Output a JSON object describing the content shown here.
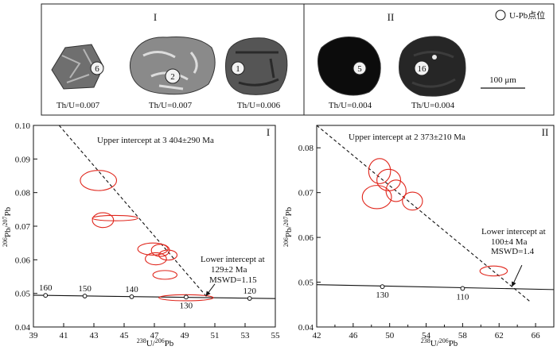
{
  "figure": {
    "image_panel": {
      "groups": [
        {
          "numeral": "I"
        },
        {
          "numeral": "II"
        }
      ],
      "grains": [
        {
          "id": "6",
          "th_u": "Th/U=0.007",
          "group": "I",
          "tone": "#6f6f6f"
        },
        {
          "id": "2",
          "th_u": "Th/U=0.007",
          "group": "I",
          "tone": "#8a8a8a"
        },
        {
          "id": "1",
          "th_u": "Th/U=0.006",
          "group": "I",
          "tone": "#555555"
        },
        {
          "id": "5",
          "th_u": "Th/U=0.004",
          "group": "II",
          "tone": "#0c0c0c"
        },
        {
          "id": "16",
          "th_u": "Th/U=0.004",
          "group": "II",
          "tone": "#262626"
        }
      ],
      "legend_label": "U-Pb点位",
      "scale_bar_label": "100 μm"
    }
  },
  "chart_data": [
    {
      "type": "scatter",
      "panel": "I",
      "xlabel": "238U/206Pb",
      "ylabel": "206Pb/207Pb",
      "xlim": [
        39,
        55
      ],
      "ylim": [
        0.04,
        0.1
      ],
      "xticks": [
        "39",
        "41",
        "43",
        "45",
        "47",
        "49",
        "51",
        "53",
        "55"
      ],
      "yticks": [
        "0.04",
        "0.05",
        "0.06",
        "0.07",
        "0.08",
        "0.09",
        "0.10"
      ],
      "ellipses": [
        {
          "x": 43.3,
          "y": 0.0836,
          "rx": 1.2,
          "ry": 0.003
        },
        {
          "x": 43.6,
          "y": 0.0718,
          "rx": 0.7,
          "ry": 0.0022
        },
        {
          "x": 44.4,
          "y": 0.0724,
          "rx": 1.5,
          "ry": 0.0008
        },
        {
          "x": 46.9,
          "y": 0.0632,
          "rx": 1.0,
          "ry": 0.0018
        },
        {
          "x": 47.4,
          "y": 0.0628,
          "rx": 0.6,
          "ry": 0.0018
        },
        {
          "x": 47.1,
          "y": 0.0603,
          "rx": 0.7,
          "ry": 0.0018
        },
        {
          "x": 47.9,
          "y": 0.0614,
          "rx": 0.6,
          "ry": 0.0015
        },
        {
          "x": 47.7,
          "y": 0.0555,
          "rx": 0.8,
          "ry": 0.0013
        },
        {
          "x": 49.1,
          "y": 0.0487,
          "rx": 1.8,
          "ry": 0.0009
        }
      ],
      "discordia": {
        "from": [
          40.7,
          0.1
        ],
        "to": [
          50.5,
          0.0488
        ]
      },
      "concordia_points": [
        {
          "x": 39.8,
          "y": 0.0494,
          "label": "160"
        },
        {
          "x": 42.4,
          "y": 0.0492,
          "label": "150"
        },
        {
          "x": 45.5,
          "y": 0.049,
          "label": "140"
        },
        {
          "x": 49.1,
          "y": 0.0489,
          "label": "130"
        },
        {
          "x": 53.3,
          "y": 0.0485,
          "label": "120"
        }
      ],
      "concordia_curve": [
        [
          39,
          0.04946
        ],
        [
          55,
          0.04845
        ]
      ],
      "upper_intercept": "Upper intercept at 3 404±290 Ma",
      "lower_intercept": [
        "Lower intercept at",
        "129±2 Ma",
        "MSWD=1.15"
      ],
      "arrow_from": [
        51.0,
        0.0528
      ],
      "arrow_to": [
        50.4,
        0.0492
      ]
    },
    {
      "type": "scatter",
      "panel": "II",
      "xlabel": "238U/206Pb",
      "ylabel": "206Pb/207Pb",
      "xlim": [
        42,
        68
      ],
      "ylim": [
        0.04,
        0.085
      ],
      "xticks": [
        "42",
        "46",
        "50",
        "54",
        "58",
        "62",
        "66"
      ],
      "xtick_values": [
        42,
        46,
        50,
        54,
        58,
        62,
        66
      ],
      "yticks": [
        "0.04",
        "0.05",
        "0.06",
        "0.07",
        "0.08"
      ],
      "ytick_values": [
        0.04,
        0.05,
        0.06,
        0.07,
        0.08
      ],
      "minor_xticks": [
        44,
        48,
        52,
        56,
        60,
        64,
        68
      ],
      "ellipses": [
        {
          "x": 48.9,
          "y": 0.0748,
          "rx": 1.2,
          "ry": 0.0028
        },
        {
          "x": 49.9,
          "y": 0.0728,
          "rx": 1.3,
          "ry": 0.0024
        },
        {
          "x": 50.7,
          "y": 0.0704,
          "rx": 1.1,
          "ry": 0.0024
        },
        {
          "x": 48.6,
          "y": 0.069,
          "rx": 1.6,
          "ry": 0.0026
        },
        {
          "x": 52.5,
          "y": 0.0681,
          "rx": 1.1,
          "ry": 0.002
        },
        {
          "x": 61.4,
          "y": 0.0525,
          "rx": 1.5,
          "ry": 0.0011
        }
      ],
      "discordia": {
        "from": [
          42,
          0.085
        ],
        "to": [
          65.5,
          0.0455
        ]
      },
      "concordia_points": [
        {
          "x": 49.2,
          "y": 0.049,
          "label": "130"
        },
        {
          "x": 58.0,
          "y": 0.0486,
          "label": "110"
        }
      ],
      "concordia_curve": [
        [
          42,
          0.04945
        ],
        [
          68,
          0.04835
        ]
      ],
      "upper_intercept": "Upper intercept at 2 373±210 Ma",
      "lower_intercept": [
        "Lower intercept at",
        "100±4 Ma",
        "MSWD=1.4"
      ],
      "arrow_from": [
        64.5,
        0.0538
      ],
      "arrow_to": [
        63.4,
        0.049
      ]
    }
  ]
}
